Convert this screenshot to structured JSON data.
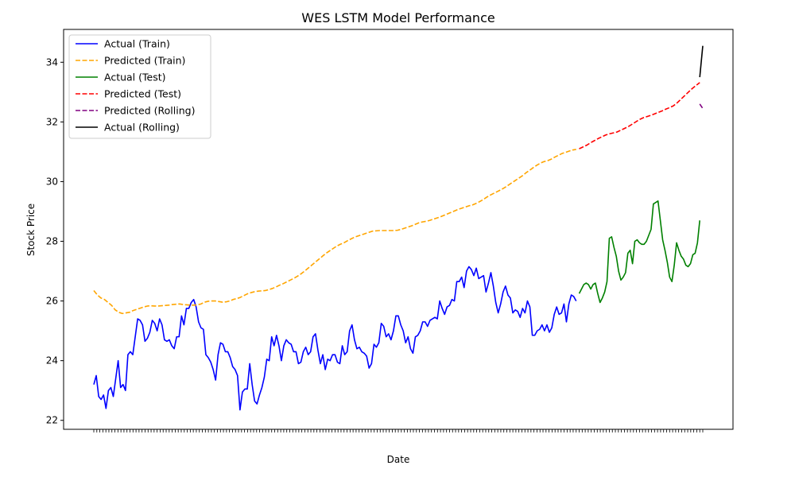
{
  "chart_data": {
    "type": "line",
    "title": "WES LSTM Model Performance",
    "xlabel": "Date",
    "ylabel": "Stock Price",
    "ylim": [
      21.7,
      35.1
    ],
    "yticks": [
      22,
      24,
      26,
      28,
      30,
      32,
      34
    ],
    "grid": false,
    "legend_position": "top-left",
    "train_x_range": [
      0,
      160
    ],
    "test_x_range": [
      161,
      201
    ],
    "rolling_x_range": [
      201,
      202
    ],
    "series": [
      {
        "name": "Actual (Train)",
        "color": "#0000ff",
        "dash": "solid",
        "values": [
          23.2,
          23.5,
          22.8,
          22.7,
          22.85,
          22.4,
          23.0,
          23.1,
          22.8,
          23.4,
          24.0,
          23.1,
          23.2,
          23.0,
          24.2,
          24.3,
          24.2,
          24.8,
          25.4,
          25.35,
          25.2,
          24.65,
          24.75,
          24.95,
          25.35,
          25.25,
          25.0,
          25.4,
          25.2,
          24.7,
          24.65,
          24.7,
          24.5,
          24.4,
          24.8,
          24.8,
          25.5,
          25.2,
          25.75,
          25.75,
          25.95,
          26.05,
          25.8,
          25.3,
          25.1,
          25.05,
          24.2,
          24.1,
          23.95,
          23.7,
          23.35,
          24.2,
          24.6,
          24.55,
          24.3,
          24.3,
          24.1,
          23.8,
          23.7,
          23.5,
          22.35,
          22.95,
          23.05,
          23.05,
          23.9,
          23.2,
          22.65,
          22.55,
          22.85,
          23.1,
          23.45,
          24.05,
          24.0,
          24.8,
          24.5,
          24.85,
          24.5,
          24.0,
          24.5,
          24.7,
          24.6,
          24.55,
          24.3,
          24.3,
          23.9,
          23.95,
          24.3,
          24.45,
          24.2,
          24.3,
          24.8,
          24.9,
          24.35,
          23.9,
          24.2,
          23.7,
          24.05,
          24.0,
          24.2,
          24.2,
          23.95,
          23.9,
          24.5,
          24.2,
          24.3,
          25.0,
          25.2,
          24.7,
          24.4,
          24.45,
          24.3,
          24.25,
          24.15,
          23.75,
          23.9,
          24.55,
          24.45,
          24.6,
          25.25,
          25.15,
          24.8,
          24.9,
          24.7,
          25.0,
          25.5,
          25.5,
          25.2,
          25.0,
          24.6,
          24.8,
          24.4,
          24.25,
          24.8,
          24.85,
          25.0,
          25.3,
          25.3,
          25.15,
          25.35,
          25.4,
          25.45,
          25.4,
          26.0,
          25.75,
          25.55,
          25.8,
          25.85,
          26.05,
          26.0,
          26.65,
          26.65,
          26.8,
          26.45,
          27.0,
          27.15,
          27.05,
          26.85,
          27.1,
          26.75,
          26.8,
          26.85,
          26.3,
          26.6,
          26.95,
          26.5,
          25.95,
          25.6,
          25.9,
          26.3,
          26.5,
          26.2,
          26.1,
          25.6,
          25.7,
          25.65,
          25.45,
          25.75,
          25.6,
          26.0,
          25.8,
          24.85,
          24.85,
          25.0,
          25.05,
          25.2,
          25.0,
          25.2,
          24.95,
          25.1,
          25.55,
          25.8,
          25.55,
          25.6,
          25.9,
          25.3,
          25.9,
          26.2,
          26.15,
          26.0
        ]
      },
      {
        "name": "Predicted (Train)",
        "color": "#ffa500",
        "dash": "dashed",
        "values": [
          26.35,
          26.2,
          26.1,
          26.05,
          25.95,
          25.85,
          25.7,
          25.62,
          25.58,
          25.6,
          25.62,
          25.68,
          25.72,
          25.76,
          25.8,
          25.83,
          25.84,
          25.83,
          25.83,
          25.84,
          25.85,
          25.86,
          25.88,
          25.89,
          25.9,
          25.88,
          25.87,
          25.86,
          25.86,
          25.87,
          25.9,
          25.96,
          25.99,
          26.0,
          26.0,
          25.98,
          25.96,
          25.97,
          26.0,
          26.05,
          26.08,
          26.12,
          26.18,
          26.24,
          26.28,
          26.31,
          26.33,
          26.34,
          26.35,
          26.38,
          26.42,
          26.47,
          26.53,
          26.58,
          26.64,
          26.7,
          26.76,
          26.83,
          26.91,
          27.0,
          27.1,
          27.2,
          27.3,
          27.4,
          27.5,
          27.6,
          27.68,
          27.76,
          27.84,
          27.9,
          27.95,
          28.02,
          28.08,
          28.14,
          28.18,
          28.22,
          28.26,
          28.3,
          28.34,
          28.35,
          28.36,
          28.36,
          28.36,
          28.36,
          28.36,
          28.37,
          28.4,
          28.44,
          28.48,
          28.52,
          28.57,
          28.62,
          28.65,
          28.67,
          28.7,
          28.74,
          28.78,
          28.82,
          28.87,
          28.92,
          28.97,
          29.02,
          29.07,
          29.11,
          29.15,
          29.19,
          29.22,
          29.27,
          29.33,
          29.4,
          29.48,
          29.55,
          29.61,
          29.67,
          29.73,
          29.8,
          29.88,
          29.96,
          30.04,
          30.12,
          30.2,
          30.3,
          30.38,
          30.47,
          30.55,
          30.62,
          30.67,
          30.7,
          30.75,
          30.82,
          30.88,
          30.94,
          30.98,
          31.02,
          31.06,
          31.08
        ]
      },
      {
        "name": "Actual (Test)",
        "color": "#008000",
        "dash": "solid",
        "values": [
          26.25,
          26.4,
          26.55,
          26.6,
          26.55,
          26.4,
          26.55,
          26.6,
          26.25,
          25.95,
          26.1,
          26.3,
          26.65,
          28.1,
          28.15,
          27.8,
          27.5,
          27.0,
          26.7,
          26.8,
          26.95,
          27.6,
          27.7,
          27.25,
          28.0,
          28.05,
          27.95,
          27.9,
          27.9,
          28.0,
          28.2,
          28.4,
          29.25,
          29.3,
          29.35,
          28.7,
          28.05,
          27.7,
          27.3,
          26.8,
          26.65,
          27.2,
          27.95,
          27.7,
          27.5,
          27.4,
          27.2,
          27.15,
          27.25,
          27.55,
          27.6,
          27.95,
          28.7
        ]
      },
      {
        "name": "Predicted (Test)",
        "color": "#ff0000",
        "dash": "dashed",
        "values": [
          31.1,
          31.16,
          31.22,
          31.3,
          31.37,
          31.44,
          31.5,
          31.56,
          31.6,
          31.63,
          31.66,
          31.72,
          31.78,
          31.84,
          31.92,
          32.0,
          32.08,
          32.14,
          32.18,
          32.22,
          32.27,
          32.32,
          32.37,
          32.43,
          32.48,
          32.54,
          32.64,
          32.76,
          32.88,
          33.0,
          33.12,
          33.22,
          33.32
        ]
      },
      {
        "name": "Predicted (Rolling)",
        "color": "#800080",
        "dash": "dashed",
        "values": [
          32.6,
          32.45
        ]
      },
      {
        "name": "Actual (Rolling)",
        "color": "#000000",
        "dash": "solid",
        "values": [
          33.5,
          34.55
        ]
      }
    ]
  }
}
